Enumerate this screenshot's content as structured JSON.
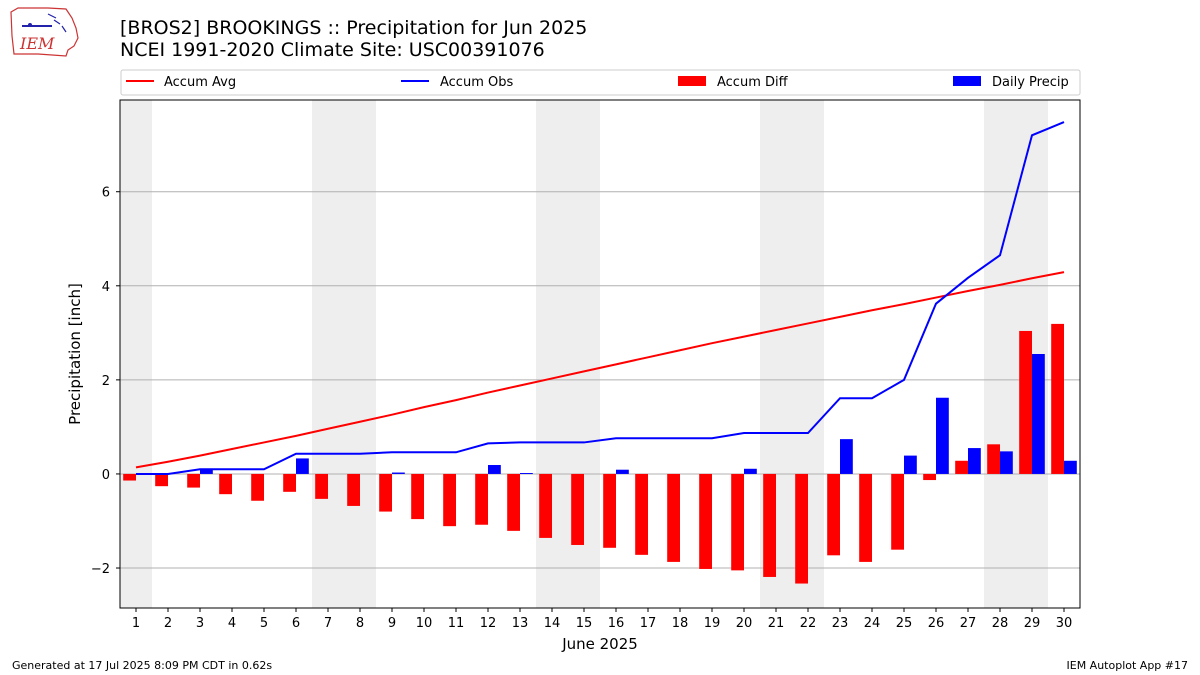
{
  "header": {
    "title_line1": "[BROS2] BROOKINGS :: Precipitation for Jun 2025",
    "title_line2": "NCEI 1991-2020 Climate Site: USC00391076",
    "logo_text": "IEM"
  },
  "footer": {
    "generated": "Generated at 17 Jul 2025 8:09 PM CDT in 0.62s",
    "app": "IEM Autoplot App #17"
  },
  "colors": {
    "accum_avg": "#ff0000",
    "accum_obs": "#0000ff",
    "accum_diff": "#ff0000",
    "daily_precip": "#0000ff",
    "weekend_shade": "#eeeeee",
    "grid": "#b0b0b0"
  },
  "chart_data": {
    "type": "bar",
    "xlabel": "June 2025",
    "ylabel": "Precipitation [inch]",
    "ylim": [
      -2.85,
      7.95
    ],
    "yticks": [
      -2,
      0,
      2,
      4,
      6
    ],
    "ytick_labels": [
      "−2",
      "0",
      "2",
      "4",
      "6"
    ],
    "grid": "y",
    "legend_placement": "top",
    "categories": [
      "1",
      "2",
      "3",
      "4",
      "5",
      "6",
      "7",
      "8",
      "9",
      "10",
      "11",
      "12",
      "13",
      "14",
      "15",
      "16",
      "17",
      "18",
      "19",
      "20",
      "21",
      "22",
      "23",
      "24",
      "25",
      "26",
      "27",
      "28",
      "29",
      "30"
    ],
    "weekend_spans": [
      [
        1,
        1
      ],
      [
        7,
        8
      ],
      [
        14,
        15
      ],
      [
        21,
        22
      ],
      [
        28,
        29
      ]
    ],
    "series": [
      {
        "name": "Accum Avg",
        "type": "line",
        "values": [
          0.14,
          0.26,
          0.39,
          0.53,
          0.67,
          0.81,
          0.96,
          1.11,
          1.26,
          1.42,
          1.57,
          1.73,
          1.88,
          2.03,
          2.18,
          2.33,
          2.48,
          2.63,
          2.78,
          2.92,
          3.06,
          3.2,
          3.34,
          3.48,
          3.61,
          3.75,
          3.89,
          4.02,
          4.16,
          4.29
        ]
      },
      {
        "name": "Accum Obs",
        "type": "line",
        "values": [
          0.0,
          0.0,
          0.1,
          0.1,
          0.1,
          0.43,
          0.43,
          0.43,
          0.46,
          0.46,
          0.46,
          0.65,
          0.67,
          0.67,
          0.67,
          0.76,
          0.76,
          0.76,
          0.76,
          0.87,
          0.87,
          0.87,
          1.61,
          1.61,
          2.0,
          3.62,
          4.17,
          4.65,
          7.2,
          7.48
        ]
      },
      {
        "name": "Accum Diff",
        "type": "bar",
        "values": [
          -0.14,
          -0.26,
          -0.29,
          -0.43,
          -0.57,
          -0.38,
          -0.53,
          -0.68,
          -0.8,
          -0.96,
          -1.11,
          -1.08,
          -1.21,
          -1.36,
          -1.51,
          -1.57,
          -1.72,
          -1.87,
          -2.02,
          -2.05,
          -2.19,
          -2.33,
          -1.73,
          -1.87,
          -1.61,
          -0.13,
          0.28,
          0.63,
          3.04,
          3.19
        ]
      },
      {
        "name": "Daily Precip",
        "type": "bar",
        "values": [
          0,
          0,
          0.1,
          0,
          0,
          0.33,
          0,
          0,
          0.03,
          0,
          0,
          0.19,
          0.02,
          0,
          0,
          0.09,
          0,
          0,
          0,
          0.11,
          0,
          0,
          0.74,
          0,
          0.39,
          1.62,
          0.55,
          0.48,
          2.55,
          0.28
        ]
      }
    ]
  }
}
